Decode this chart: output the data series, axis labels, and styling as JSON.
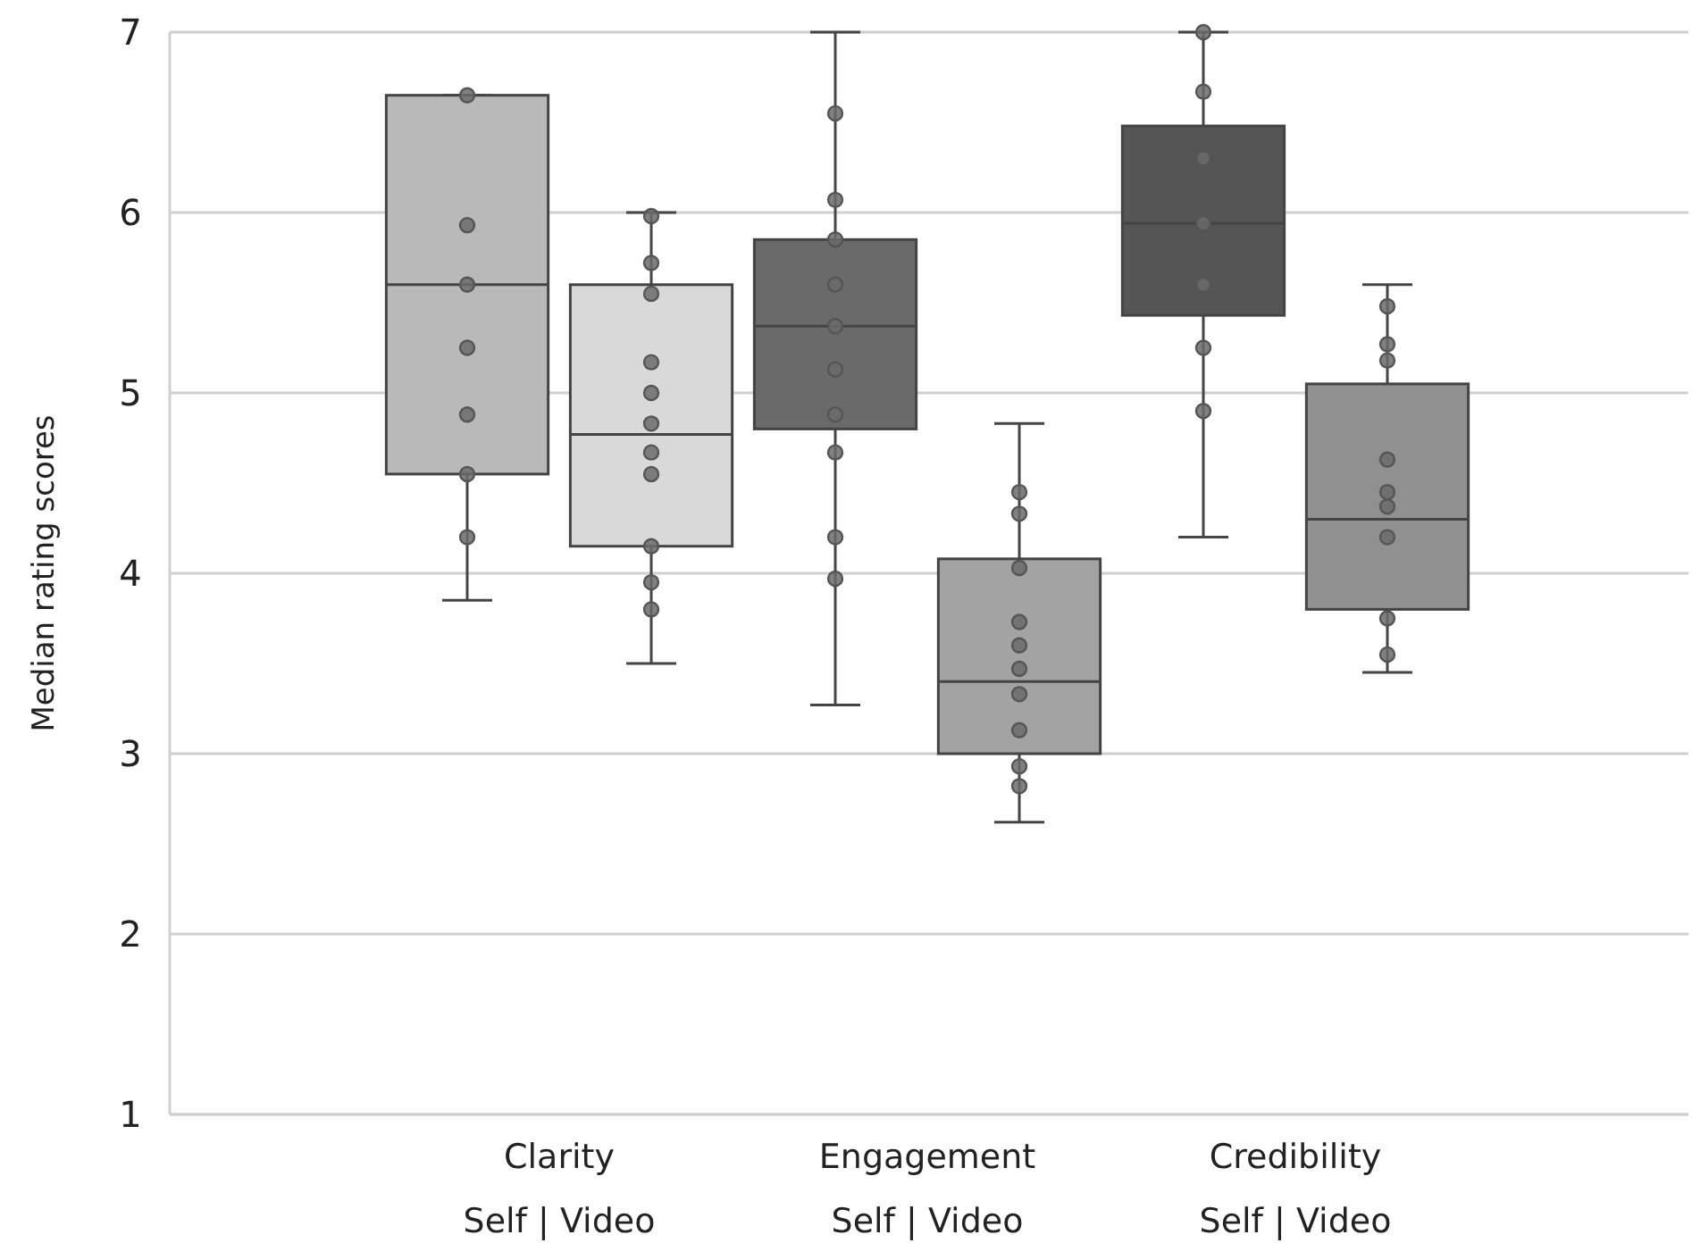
{
  "chart_data": {
    "type": "box",
    "ylabel": "Median rating scores",
    "categories": [
      "Clarity\nSelf | Video",
      "Engagement\nSelf | Video",
      "Credibility\nSelf | Video"
    ],
    "ylim": [
      1,
      7
    ],
    "yticks": [
      1,
      2,
      3,
      4,
      5,
      6,
      7
    ],
    "grid": "y",
    "series": [
      {
        "colors": [
          "#b9b9b9",
          "#6a6a6a",
          "#555555"
        ],
        "boxes": [
          {
            "low": 3.85,
            "q1": 4.55,
            "median": 5.6,
            "q3": 6.65,
            "high": 6.65
          },
          {
            "low": 3.27,
            "q1": 4.8,
            "median": 5.37,
            "q3": 5.85,
            "high": 7.0
          },
          {
            "low": 4.2,
            "q1": 5.43,
            "median": 5.94,
            "q3": 6.48,
            "high": 7.0
          }
        ]
      },
      {
        "colors": [
          "#d9d9d9",
          "#a3a3a3",
          "#909090"
        ],
        "boxes": [
          {
            "low": 3.5,
            "q1": 4.15,
            "median": 4.77,
            "q3": 5.6,
            "high": 6.0
          },
          {
            "low": 2.62,
            "q1": 3.0,
            "median": 3.4,
            "q3": 4.08,
            "high": 4.83
          },
          {
            "low": 3.45,
            "q1": 3.8,
            "median": 4.3,
            "q3": 5.05,
            "high": 5.6
          }
        ]
      },
      {
        "type": "scatter",
        "color": "#6b6b6b",
        "x": [
          "Clarity\nSelf | Video",
          "Clarity\nSelf | Video",
          "Clarity\nSelf | Video",
          "Clarity\nSelf | Video",
          "Clarity\nSelf | Video",
          "Clarity\nSelf | Video",
          "Clarity\nSelf | Video",
          "Engagement\nSelf | Video",
          "Engagement\nSelf | Video",
          "Engagement\nSelf | Video",
          "Engagement\nSelf | Video",
          "Engagement\nSelf | Video",
          "Engagement\nSelf | Video",
          "Engagement\nSelf | Video",
          "Engagement\nSelf | Video",
          "Engagement\nSelf | Video",
          "Engagement\nSelf | Video",
          "Credibility\nSelf | Video",
          "Credibility\nSelf | Video",
          "Credibility\nSelf | Video",
          "Credibility\nSelf | Video",
          "Credibility\nSelf | Video",
          "Credibility\nSelf | Video",
          "Credibility\nSelf | Video"
        ],
        "values": [
          6.65,
          5.93,
          5.6,
          5.25,
          4.88,
          4.55,
          4.2,
          6.55,
          6.07,
          5.85,
          5.6,
          5.37,
          5.13,
          4.88,
          4.67,
          4.2,
          3.97,
          7.0,
          6.67,
          6.3,
          5.94,
          5.6,
          5.25,
          4.9
        ]
      },
      {
        "type": "scatter",
        "color": "#6b6b6b",
        "x": [
          "Clarity\nSelf | Video",
          "Clarity\nSelf | Video",
          "Clarity\nSelf | Video",
          "Clarity\nSelf | Video",
          "Clarity\nSelf | Video",
          "Clarity\nSelf | Video",
          "Clarity\nSelf | Video",
          "Clarity\nSelf | Video",
          "Clarity\nSelf | Video",
          "Clarity\nSelf | Video",
          "Clarity\nSelf | Video",
          "Engagement\nSelf | Video",
          "Engagement\nSelf | Video",
          "Engagement\nSelf | Video",
          "Engagement\nSelf | Video",
          "Engagement\nSelf | Video",
          "Engagement\nSelf | Video",
          "Engagement\nSelf | Video",
          "Engagement\nSelf | Video",
          "Engagement\nSelf | Video",
          "Engagement\nSelf | Video",
          "Credibility\nSelf | Video",
          "Credibility\nSelf | Video",
          "Credibility\nSelf | Video",
          "Credibility\nSelf | Video",
          "Credibility\nSelf | Video",
          "Credibility\nSelf | Video",
          "Credibility\nSelf | Video",
          "Credibility\nSelf | Video",
          "Credibility\nSelf | Video"
        ],
        "values": [
          5.98,
          5.72,
          5.55,
          5.17,
          5.0,
          4.83,
          4.67,
          4.55,
          4.15,
          3.95,
          3.8,
          4.45,
          4.33,
          4.03,
          3.73,
          3.6,
          3.47,
          3.33,
          3.13,
          2.93,
          2.82,
          5.48,
          5.27,
          5.18,
          4.63,
          4.45,
          4.37,
          4.2,
          3.75,
          3.55
        ]
      }
    ]
  }
}
